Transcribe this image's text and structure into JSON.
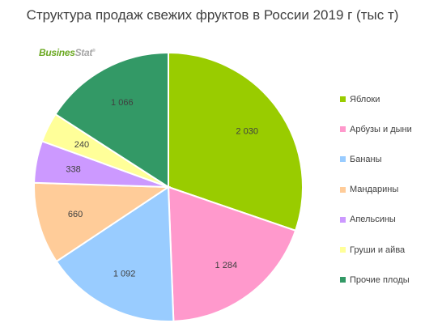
{
  "chart_data": {
    "type": "pie",
    "title": "Структура продаж свежих фруктов в России 2019 г (тыс т)",
    "categories": [
      "Яблоки",
      "Арбузы и дыни",
      "Бананы",
      "Мандарины",
      "Апельсины",
      "Груши и айва",
      "Прочие плоды"
    ],
    "values": [
      2030,
      1284,
      1092,
      660,
      338,
      240,
      1066
    ],
    "value_labels": [
      "2 030",
      "1 284",
      "1 092",
      "660",
      "338",
      "240",
      "1 066"
    ],
    "colors": [
      "#99cc00",
      "#ff99cc",
      "#99ccff",
      "#ffcc99",
      "#cc99ff",
      "#ffff99",
      "#339966"
    ],
    "legend_position": "right",
    "start_angle": "12 o'clock, clockwise"
  },
  "logo": {
    "main": "Busines",
    "accent": "Stat",
    "mark": "®"
  }
}
